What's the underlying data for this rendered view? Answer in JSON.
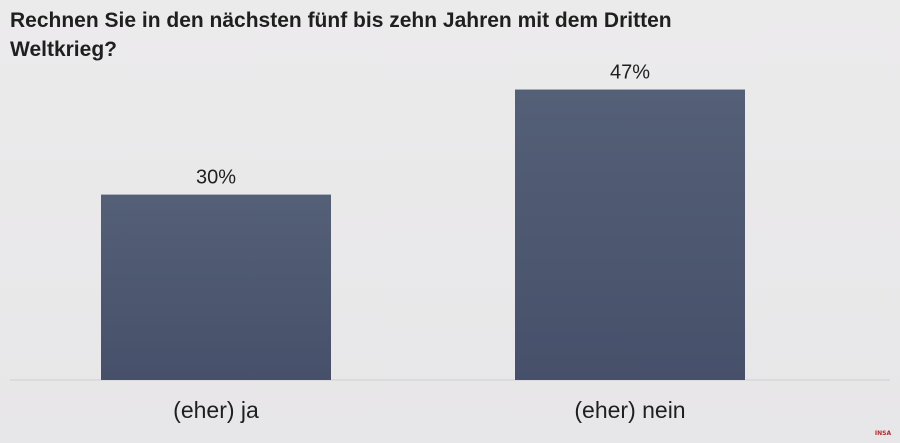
{
  "chart_data": {
    "type": "bar",
    "title": "Rechnen Sie in den nächsten fünf bis zehn Jahren mit dem Dritten Weltkrieg?",
    "categories": [
      "(eher) ja",
      "(eher) nein"
    ],
    "values": [
      30,
      47
    ],
    "value_labels": [
      "30%",
      "47%"
    ],
    "ylim": [
      0,
      50
    ],
    "grid": false,
    "bar_color": "#525c73"
  },
  "logo_text": "INSA"
}
